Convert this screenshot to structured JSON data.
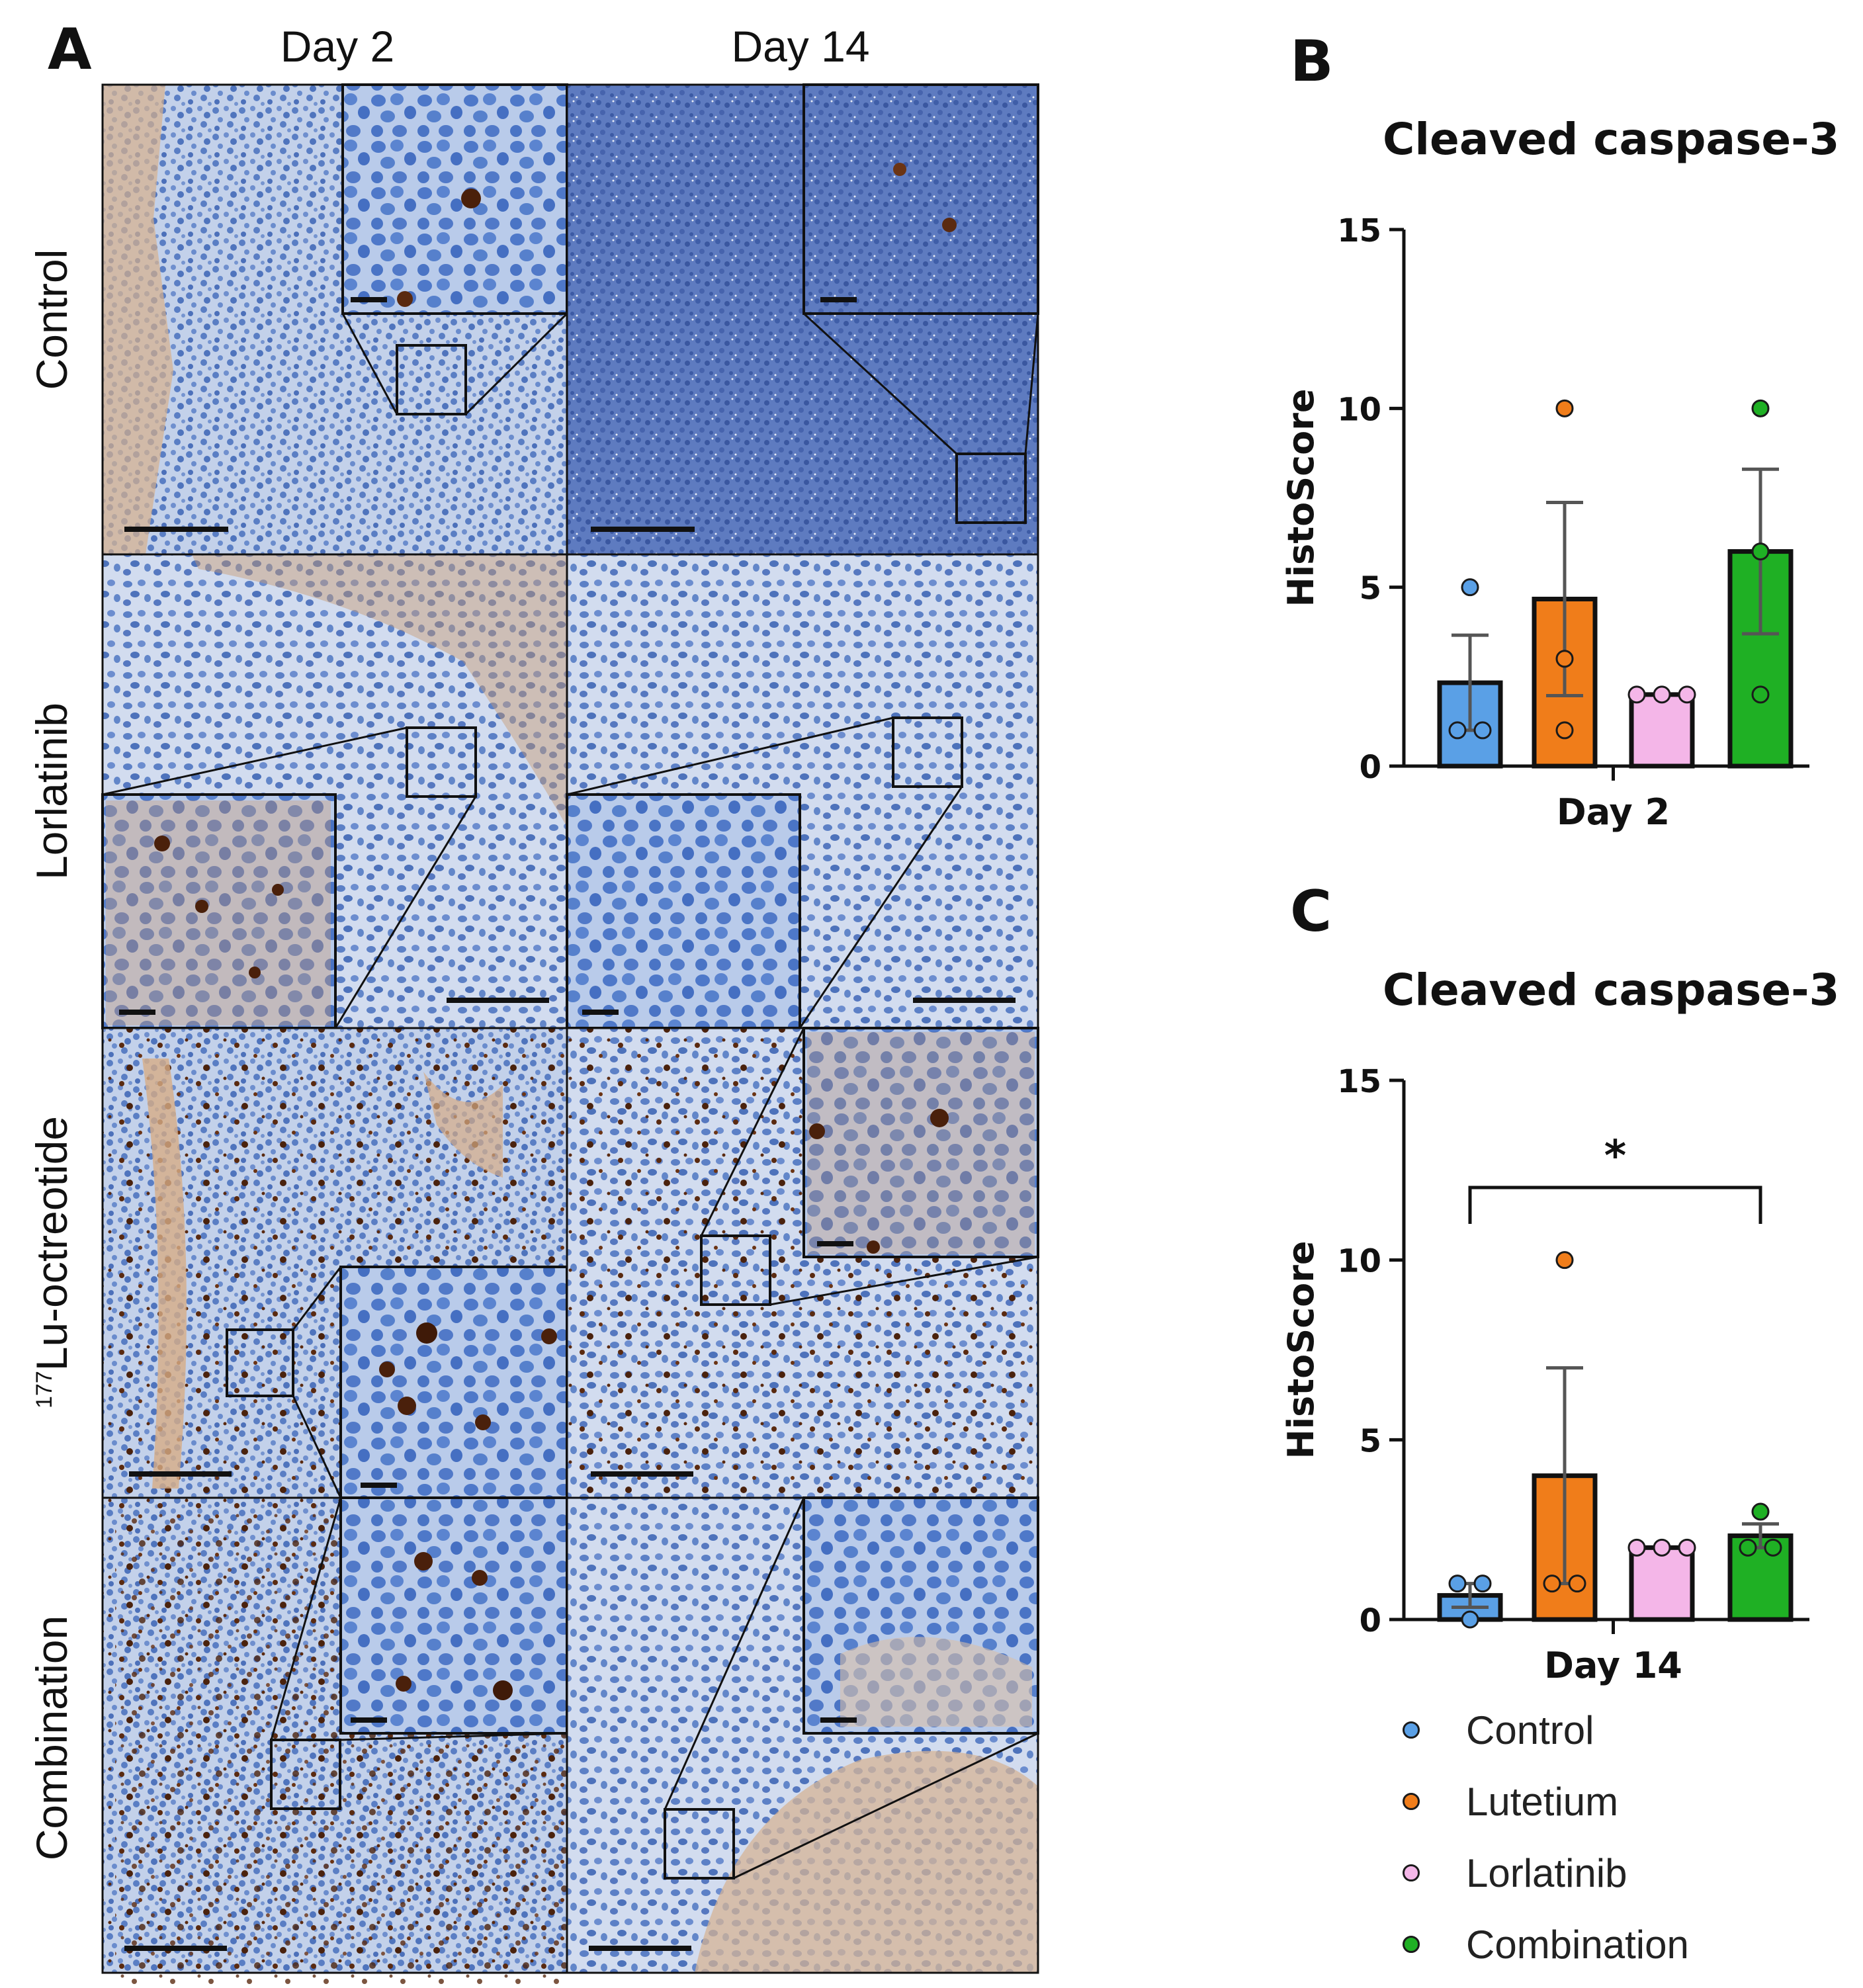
{
  "figure": {
    "panel_a": "A",
    "panel_b": "B",
    "panel_c": "C"
  },
  "micrographs": {
    "columns": [
      "Day 2",
      "Day 14"
    ],
    "rows": [
      {
        "label": "Control",
        "sup": ""
      },
      {
        "label": "Lorlatinib",
        "sup": ""
      },
      {
        "label": "Lu-octreotide",
        "sup": "177"
      },
      {
        "label": "Combination",
        "sup": ""
      }
    ],
    "stain_colors": {
      "hematoxylin": "#5b7fc4",
      "dab": "#7a3b16",
      "background": "#c8d5ec"
    }
  },
  "colors": {
    "Control": "#5aa0e6",
    "Lutetium": "#f07d1a",
    "Lorlatinib": "#f4b6e8",
    "Combination": "#1fb024"
  },
  "legend": [
    {
      "label": "Control",
      "color": "#5aa0e6"
    },
    {
      "label": "Lutetium",
      "color": "#f07d1a"
    },
    {
      "label": "Lorlatinib",
      "color": "#f4b6e8"
    },
    {
      "label": "Combination",
      "color": "#1fb024"
    }
  ],
  "chart_data": [
    {
      "type": "bar",
      "title": "Cleaved caspase-3",
      "xlabel": "Day 2",
      "ylabel": "HistoScore",
      "ylim": [
        0,
        15
      ],
      "yticks": [
        0,
        5,
        10,
        15
      ],
      "categories": [
        "Control",
        "Lutetium",
        "Lorlatinib",
        "Combination"
      ],
      "values": [
        2.33,
        4.67,
        2.0,
        6.0
      ],
      "error": [
        1.33,
        2.7,
        0,
        2.3
      ],
      "points": [
        [
          5,
          1,
          1
        ],
        [
          10,
          3,
          1
        ],
        [
          2,
          2,
          2
        ],
        [
          10,
          6,
          2
        ]
      ],
      "significance": null
    },
    {
      "type": "bar",
      "title": "Cleaved caspase-3",
      "xlabel": "Day 14",
      "ylabel": "HistoScore",
      "ylim": [
        0,
        15
      ],
      "yticks": [
        0,
        5,
        10,
        15
      ],
      "categories": [
        "Control",
        "Lutetium",
        "Lorlatinib",
        "Combination"
      ],
      "values": [
        0.67,
        4.0,
        2.0,
        2.33
      ],
      "error": [
        0.33,
        3.0,
        0,
        0.33
      ],
      "points": [
        [
          1,
          1,
          0
        ],
        [
          10,
          1,
          1
        ],
        [
          2,
          2,
          2
        ],
        [
          3,
          2,
          2
        ]
      ],
      "significance": {
        "from": "Control",
        "to": "Combination",
        "label": "*"
      }
    }
  ]
}
